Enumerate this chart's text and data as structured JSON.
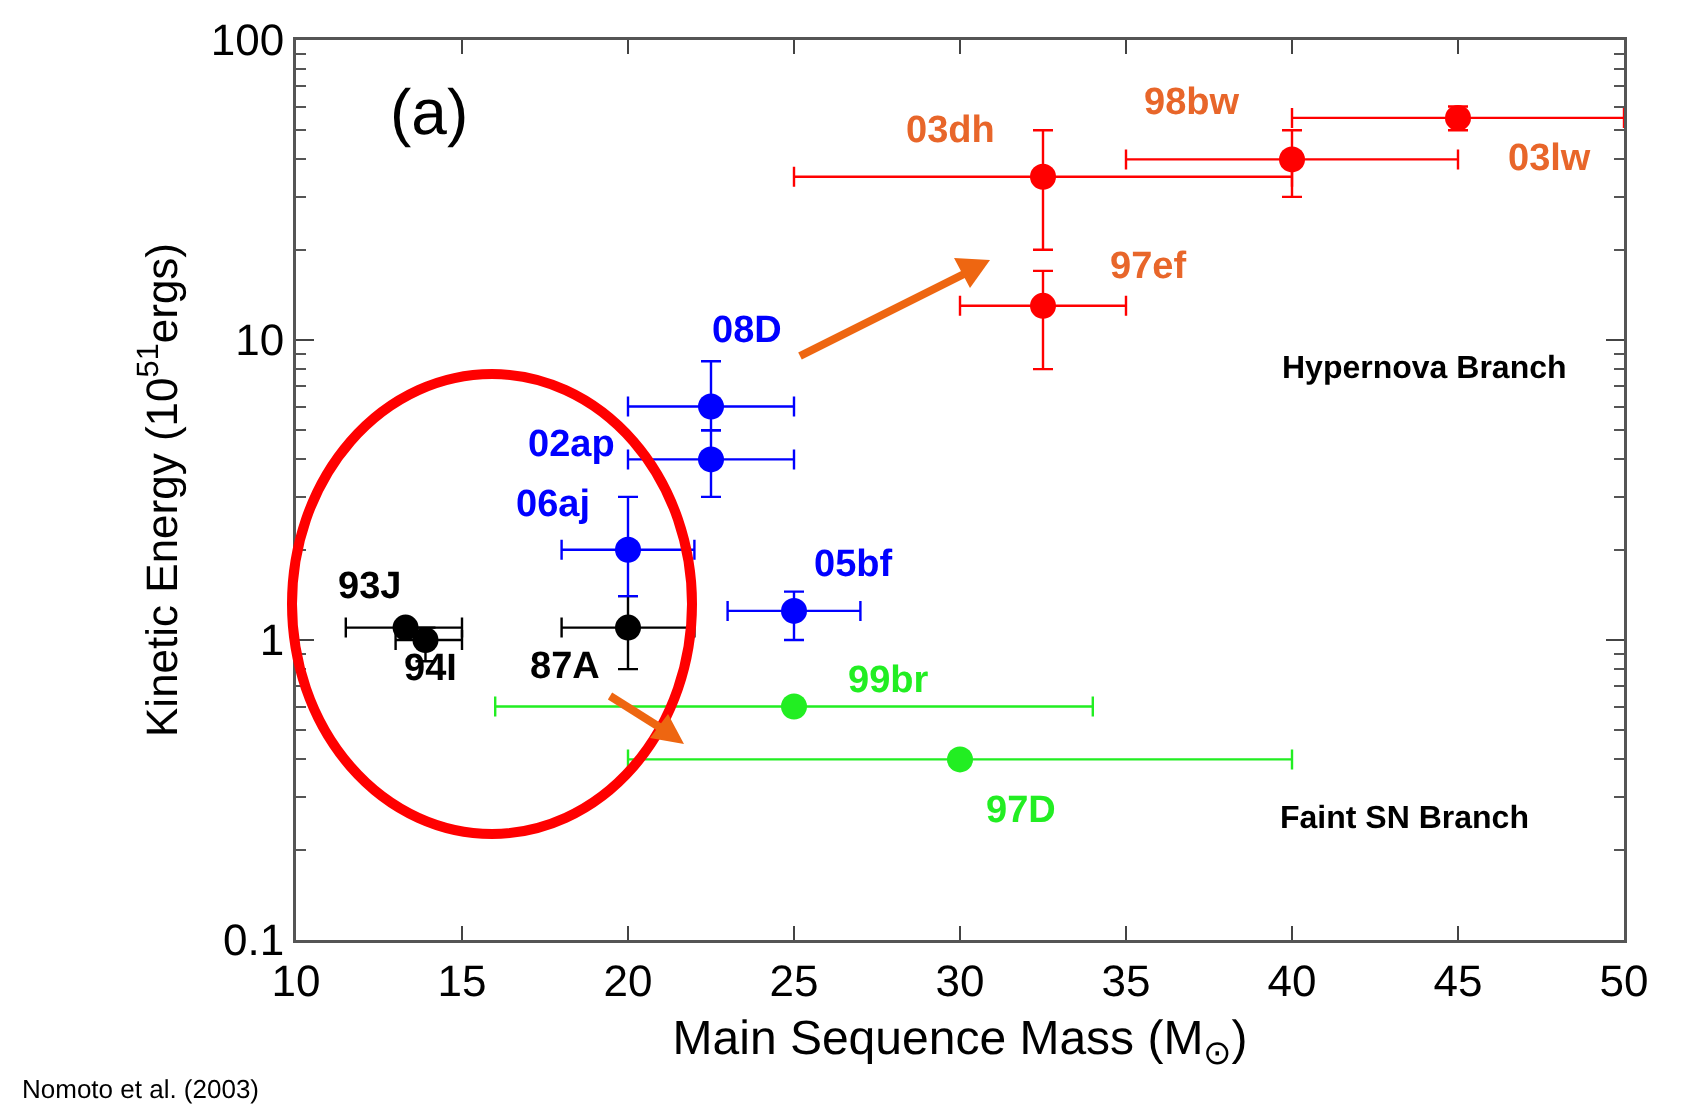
{
  "chart_data": {
    "type": "scatter",
    "xlabel": "Main Sequence Mass (M$_{⊙}$)",
    "ylabel": "Kinetic Energy (10$^{51}$ergs)",
    "xlim": [
      10,
      50
    ],
    "xticks": [
      10,
      15,
      20,
      25,
      30,
      35,
      40,
      45,
      50
    ],
    "ylim": [
      0.1,
      100
    ],
    "yticks": [
      0.1,
      1,
      10,
      100
    ],
    "log": "y",
    "grid": false,
    "marker": "circle",
    "series": [
      {
        "color": "#000000",
        "x": [
          13.3,
          13.9,
          20
        ],
        "values": [
          1.1,
          1.0,
          1.1
        ],
        "errors": [
          null,
          [
            0.85,
            1.1
          ],
          [
            0.8,
            1.4
          ]
        ],
        "xerrors": [
          [
            11.5,
            15
          ],
          [
            13,
            15
          ],
          [
            18,
            22
          ]
        ]
      },
      {
        "color": "#0000ff",
        "x": [
          20,
          22.5,
          22.5,
          25
        ],
        "values": [
          2.0,
          4.0,
          6.0,
          1.25
        ],
        "errors": [
          [
            1.4,
            3.0
          ],
          [
            3.0,
            5.0
          ],
          [
            5.0,
            8.5
          ],
          [
            1.0,
            1.45
          ]
        ],
        "xerrors": [
          [
            18,
            22
          ],
          [
            20,
            25
          ],
          [
            20,
            25
          ],
          [
            23,
            27
          ]
        ]
      },
      {
        "color": "#ff0000",
        "x": [
          32.5,
          32.5,
          40,
          45
        ],
        "values": [
          35,
          13,
          40,
          55
        ],
        "errors": [
          [
            20,
            50
          ],
          [
            8,
            17
          ],
          [
            30,
            50
          ],
          [
            50,
            60
          ]
        ],
        "xerrors": [
          [
            25,
            40
          ],
          [
            30,
            35
          ],
          [
            35,
            45
          ],
          [
            40,
            50
          ]
        ]
      },
      {
        "color": "#22ee22",
        "x": [
          25,
          30
        ],
        "values": [
          0.6,
          0.4
        ],
        "xerrors": [
          [
            16,
            34
          ],
          [
            20,
            40
          ]
        ]
      }
    ],
    "annotations": [
      "(a)",
      "Hypernova Branch",
      "Faint SN Branch",
      "Nomoto et al. (2003)",
      {
        "text": "93J",
        "x": 13.3,
        "y": 1.1
      },
      {
        "text": "94I",
        "x": 13.9,
        "y": 1.0
      },
      {
        "text": "87A",
        "x": 20,
        "y": 1.1
      },
      {
        "text": "06aj",
        "x": 20,
        "y": 2.0
      },
      {
        "text": "02ap",
        "x": 22.5,
        "y": 4.0
      },
      {
        "text": "08D",
        "x": 22.5,
        "y": 6.0
      },
      {
        "text": "05bf",
        "x": 25,
        "y": 1.25
      },
      {
        "text": "03dh",
        "x": 32.5,
        "y": 35
      },
      {
        "text": "97ef",
        "x": 32.5,
        "y": 13
      },
      {
        "text": "98bw",
        "x": 40,
        "y": 40
      },
      {
        "text": "03lw",
        "x": 45,
        "y": 55
      },
      {
        "text": "99br",
        "x": 25,
        "y": 0.6
      },
      {
        "text": "97D",
        "x": 30,
        "y": 0.4
      }
    ]
  }
}
